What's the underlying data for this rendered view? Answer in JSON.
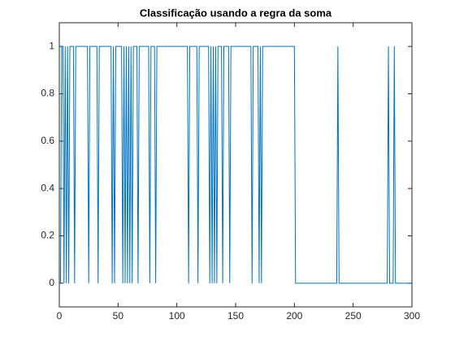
{
  "chart_data": {
    "type": "line",
    "title": "Classificação usando a regra da soma",
    "x": [
      1,
      2,
      3,
      4,
      5,
      6,
      7,
      8,
      9,
      12,
      13,
      14,
      24,
      25,
      26,
      32,
      33,
      34,
      44,
      45,
      46,
      47,
      48,
      53,
      54,
      55,
      56,
      57,
      58,
      59,
      60,
      61,
      62,
      63,
      66,
      67,
      68,
      76,
      77,
      78,
      81,
      82,
      83,
      109,
      110,
      111,
      117,
      118,
      119,
      127,
      128,
      129,
      130,
      131,
      132,
      133,
      134,
      135,
      138,
      139,
      140,
      144,
      145,
      146,
      163,
      164,
      165,
      169,
      170,
      171,
      172,
      173,
      200,
      201,
      236,
      237,
      238,
      279,
      280,
      281,
      284,
      285,
      286,
      300
    ],
    "series": [
      {
        "color": "#0072bd",
        "values": [
          0,
          1,
          1,
          0,
          1,
          0,
          1,
          0,
          1,
          1,
          0,
          1,
          1,
          0,
          1,
          1,
          0,
          1,
          1,
          0,
          1,
          0,
          1,
          1,
          0,
          1,
          0,
          1,
          0,
          1,
          0,
          1,
          0,
          1,
          1,
          0,
          1,
          1,
          0,
          1,
          1,
          0,
          1,
          1,
          0,
          1,
          1,
          0,
          1,
          1,
          0,
          1,
          0,
          1,
          0,
          1,
          0,
          1,
          1,
          0,
          1,
          1,
          0,
          1,
          1,
          0,
          1,
          1,
          0,
          1,
          0,
          1,
          1,
          0,
          0,
          1,
          0,
          0,
          1,
          0,
          0,
          1,
          0,
          0
        ]
      }
    ],
    "xlim": [
      0,
      300
    ],
    "ylim": [
      -0.1,
      1.1
    ],
    "xticks": [
      0,
      50,
      100,
      150,
      200,
      250,
      300
    ],
    "yticks": [
      0,
      0.2,
      0.4,
      0.6,
      0.8,
      1
    ]
  }
}
